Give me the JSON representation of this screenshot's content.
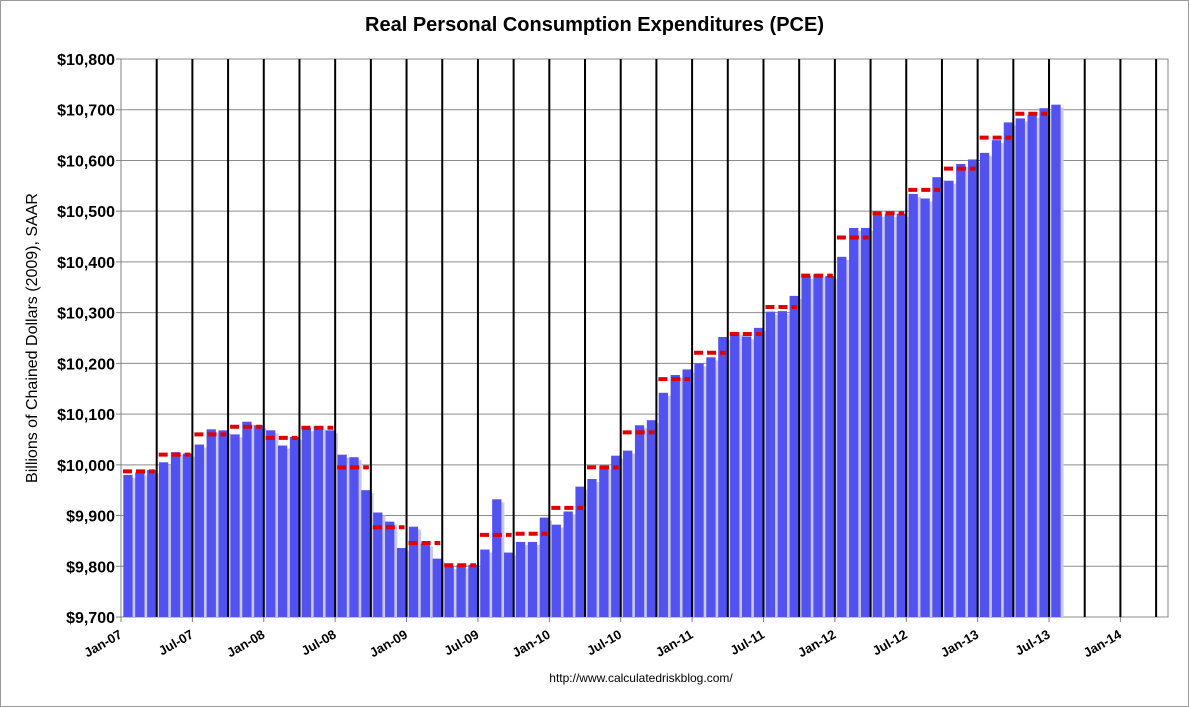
{
  "chart_data": {
    "type": "bar",
    "title": "Real Personal Consumption Expenditures (PCE)",
    "ylabel": "Billions of Chained Dollars (2009), SAAR",
    "xlabel": "",
    "source": "http://www.calculatedriskblog.com/",
    "ylim": [
      9700,
      10800
    ],
    "y_ticks": [
      "$9,700",
      "$9,800",
      "$9,900",
      "$10,000",
      "$10,100",
      "$10,200",
      "$10,300",
      "$10,400",
      "$10,500",
      "$10,600",
      "$10,700",
      "$10,800"
    ],
    "x_ticks": [
      "Jan-07",
      "Jul-07",
      "Jan-08",
      "Jul-08",
      "Jan-09",
      "Jul-09",
      "Jan-10",
      "Jul-10",
      "Jan-11",
      "Jul-11",
      "Jan-12",
      "Jul-12",
      "Jan-13",
      "Jul-13",
      "Jan-14"
    ],
    "grid": true,
    "colors": {
      "bars": "#5252f0",
      "bar_shadow": "#c8c8ec",
      "quarterly_avg": "#e00000",
      "quarter_lines": "#000000"
    },
    "series": [
      {
        "type": "bar",
        "start": "Jan-07",
        "frequency": "monthly",
        "values": [
          9980,
          9985,
          9990,
          10005,
          10025,
          10022,
          10040,
          10070,
          10068,
          10060,
          10085,
          10078,
          10068,
          10038,
          10055,
          10072,
          10076,
          10068,
          10020,
          10015,
          9950,
          9906,
          9888,
          9836,
          9878,
          9845,
          9815,
          9800,
          9802,
          9803,
          9833,
          9932,
          9827,
          9848,
          9848,
          9896,
          9882,
          9908,
          9957,
          9972,
          9998,
          10018,
          10028,
          10078,
          10088,
          10142,
          10177,
          10188,
          10200,
          10212,
          10252,
          10262,
          10253,
          10270,
          10302,
          10303,
          10333,
          10372,
          10376,
          10372,
          10410,
          10467,
          10467,
          10495,
          10495,
          10495,
          10534,
          10525,
          10567,
          10560,
          10593,
          10602,
          10615,
          10640,
          10675,
          10683,
          10690,
          10703,
          10710
        ]
      },
      {
        "type": "quarterly-average",
        "start": "Q1-07",
        "values": [
          9987,
          10020,
          10060,
          10075,
          10053,
          10073,
          9995,
          9877,
          9846,
          9802,
          9862,
          9864,
          9915,
          9995,
          10064,
          10169,
          10221,
          10258,
          10311,
          10373,
          10448,
          10496,
          10542,
          10584,
          10645,
          10692
        ]
      }
    ]
  }
}
